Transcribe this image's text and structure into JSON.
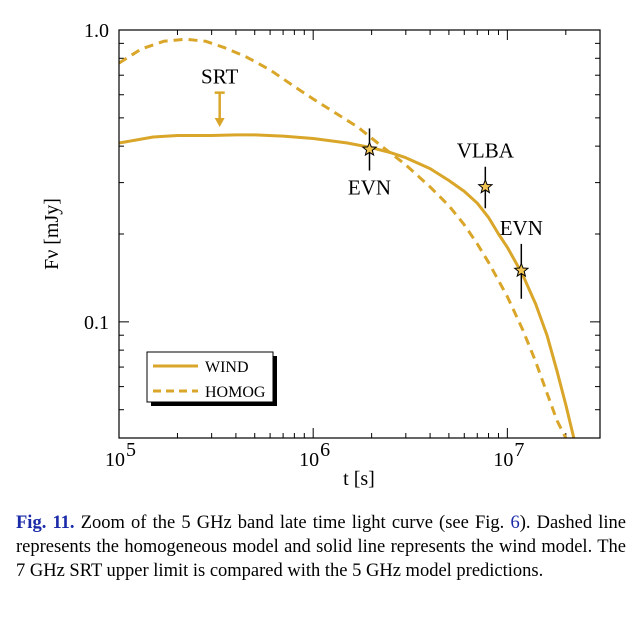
{
  "chart_data": {
    "type": "line",
    "xlabel": "t [s]",
    "ylabel": "Fν [mJy]",
    "xscale": "log",
    "yscale": "log",
    "xlim": [
      100000,
      30000000
    ],
    "ylim": [
      0.04,
      1.0
    ],
    "x_ticks": [
      {
        "value": 100000,
        "base": "10",
        "exp": "5"
      },
      {
        "value": 1000000,
        "base": "10",
        "exp": "6"
      },
      {
        "value": 10000000,
        "base": "10",
        "exp": "7"
      }
    ],
    "y_ticks": [
      {
        "value": 1.0,
        "label": "1.0"
      },
      {
        "value": 0.1,
        "label": "0.1"
      }
    ],
    "colors": {
      "model": "#d9a62a",
      "marker_fill": "#f2c552",
      "data": "#000000"
    },
    "series": [
      {
        "name": "WIND",
        "style": "solid",
        "x": [
          100000,
          150000,
          200000,
          250000,
          300000,
          400000,
          500000,
          700000,
          1000000,
          1500000,
          2000000,
          2500000,
          3000000,
          4000000,
          5000000,
          6000000,
          7000000,
          8000000,
          9000000,
          10000000,
          12000000,
          14000000,
          16000000,
          18000000,
          20000000,
          22000000
        ],
        "y": [
          0.41,
          0.43,
          0.435,
          0.435,
          0.435,
          0.437,
          0.437,
          0.433,
          0.425,
          0.41,
          0.395,
          0.38,
          0.365,
          0.335,
          0.305,
          0.28,
          0.255,
          0.228,
          0.2,
          0.18,
          0.145,
          0.115,
          0.09,
          0.068,
          0.052,
          0.04
        ]
      },
      {
        "name": "HOMOG",
        "style": "dashed",
        "x": [
          100000,
          130000,
          170000,
          220000,
          280000,
          350000,
          450000,
          600000,
          800000,
          1000000,
          1300000,
          1700000,
          2200000,
          3000000,
          4000000,
          5000000,
          6000000,
          7000000,
          8000000,
          10000000,
          12000000,
          14000000,
          16000000,
          18000000,
          20000000
        ],
        "y": [
          0.77,
          0.86,
          0.915,
          0.93,
          0.915,
          0.87,
          0.81,
          0.73,
          0.64,
          0.58,
          0.52,
          0.465,
          0.405,
          0.345,
          0.29,
          0.25,
          0.215,
          0.185,
          0.16,
          0.122,
          0.094,
          0.073,
          0.057,
          0.046,
          0.04
        ]
      }
    ],
    "points": [
      {
        "label": "EVN",
        "t": 1950000,
        "flux": 0.39,
        "err_low": 0.33,
        "err_high": 0.46,
        "label_pos": "below"
      },
      {
        "label": "VLBA",
        "t": 7700000,
        "flux": 0.29,
        "err_low": 0.245,
        "err_high": 0.34,
        "label_pos": "above"
      },
      {
        "label": "EVN",
        "t": 11800000,
        "flux": 0.15,
        "err_low": 0.12,
        "err_high": 0.185,
        "label_pos": "above"
      }
    ],
    "upper_limit": {
      "label": "SRT",
      "t": 330000,
      "flux_top": 0.61,
      "flux_bottom": 0.465
    },
    "legend": {
      "position": "bottom-left",
      "entries": [
        "WIND",
        "HOMOG"
      ]
    }
  },
  "caption": {
    "fig_label": "Fig. 11.",
    "text_1": " Zoom of the 5 GHz band late time light curve (see Fig. ",
    "fig_link": "6",
    "text_2": "). Dashed line represents the homogeneous model and solid line represents the wind model. The 7 GHz SRT upper limit is compared with the 5 GHz model predictions."
  }
}
